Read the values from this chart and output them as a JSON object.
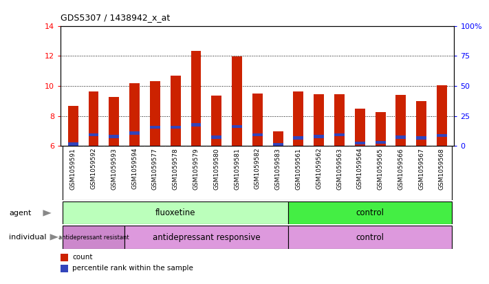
{
  "title": "GDS5307 / 1438942_x_at",
  "samples": [
    "GSM1059591",
    "GSM1059592",
    "GSM1059593",
    "GSM1059594",
    "GSM1059577",
    "GSM1059578",
    "GSM1059579",
    "GSM1059580",
    "GSM1059581",
    "GSM1059582",
    "GSM1059583",
    "GSM1059561",
    "GSM1059562",
    "GSM1059563",
    "GSM1059564",
    "GSM1059565",
    "GSM1059566",
    "GSM1059567",
    "GSM1059568"
  ],
  "count_values": [
    8.65,
    9.65,
    9.25,
    10.2,
    10.3,
    10.7,
    12.35,
    9.35,
    11.95,
    9.5,
    7.0,
    9.65,
    9.45,
    9.45,
    8.5,
    8.25,
    9.4,
    9.0,
    10.05
  ],
  "percentile_values": [
    6.15,
    6.75,
    6.65,
    6.85,
    7.25,
    7.25,
    7.4,
    6.6,
    7.3,
    6.75,
    6.1,
    6.55,
    6.65,
    6.75,
    6.2,
    6.25,
    6.6,
    6.55,
    6.7
  ],
  "bar_color": "#cc2200",
  "blue_color": "#3344bb",
  "ymin": 6,
  "ymax": 14,
  "yticks": [
    6,
    8,
    10,
    12,
    14
  ],
  "right_yticks": [
    0,
    25,
    50,
    75,
    100
  ],
  "right_ytick_labels": [
    "0",
    "25",
    "50",
    "75",
    "100%"
  ],
  "agent_groups": [
    {
      "label": "fluoxetine",
      "start": 0,
      "end": 11,
      "color": "#bbffbb"
    },
    {
      "label": "control",
      "start": 11,
      "end": 19,
      "color": "#44ee44"
    }
  ],
  "individual_groups": [
    {
      "label": "antidepressant resistant",
      "start": 0,
      "end": 3,
      "color": "#cc88cc"
    },
    {
      "label": "antidepressant responsive",
      "start": 3,
      "end": 11,
      "color": "#dd99dd"
    },
    {
      "label": "control",
      "start": 11,
      "end": 19,
      "color": "#dd99dd"
    }
  ],
  "bar_width": 0.5,
  "xlabel_bg": "#d8d8d8",
  "plot_bg": "#ffffff"
}
